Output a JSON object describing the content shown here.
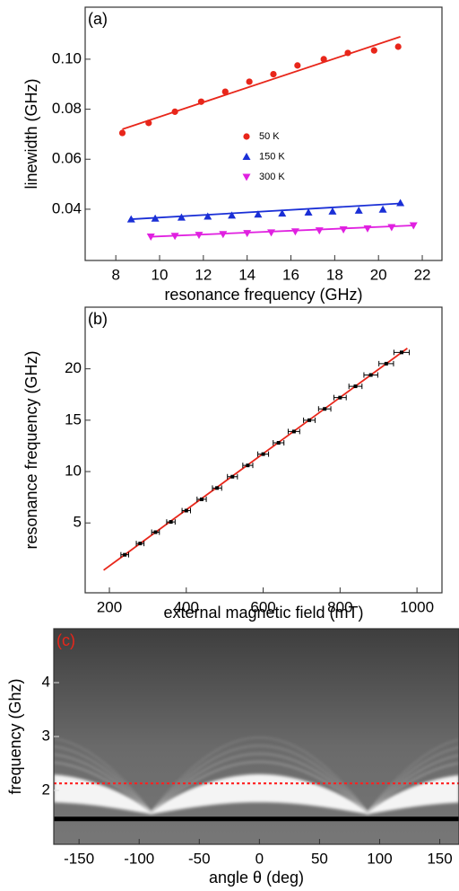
{
  "chart_data": [
    {
      "type": "scatter",
      "label": "(a)",
      "label_color": "#000000",
      "xlabel": "resonance frequency (GHz)",
      "ylabel": "linewidth (GHz)",
      "xlim": [
        6.6,
        22.9
      ],
      "ylim": [
        0.0195,
        0.1208
      ],
      "xticks": [
        8,
        10,
        12,
        14,
        16,
        18,
        20,
        22
      ],
      "yticks": [
        0.04,
        0.06,
        0.08,
        {
          "value": 0.1,
          "label": "0.10"
        }
      ],
      "legend": "center",
      "series": [
        {
          "name": "50 K",
          "color": "#e8261a",
          "marker": "circle",
          "x": [
            8.3,
            9.5,
            10.7,
            11.9,
            13.0,
            14.1,
            15.2,
            16.3,
            17.5,
            18.6,
            19.8,
            20.9
          ],
          "values": [
            0.0705,
            0.0745,
            0.079,
            0.083,
            0.087,
            0.091,
            0.094,
            0.0975,
            0.1,
            0.1025,
            0.1035,
            0.105
          ],
          "fit": {
            "color": "#e8261a",
            "x": [
              8.3,
              21.0
            ],
            "values": [
              0.072,
              0.109
            ]
          }
        },
        {
          "name": "150 K",
          "color": "#1a2fd6",
          "marker": "triangle-up",
          "x": [
            8.7,
            9.8,
            11.0,
            12.2,
            13.3,
            14.5,
            15.6,
            16.8,
            17.9,
            19.1,
            20.2,
            21.0
          ],
          "values": [
            0.036,
            0.0363,
            0.0367,
            0.0371,
            0.0375,
            0.0379,
            0.0383,
            0.0387,
            0.0391,
            0.0395,
            0.0399,
            0.0425
          ],
          "fit": {
            "color": "#1a2fd6",
            "x": [
              8.7,
              21.0
            ],
            "values": [
              0.036,
              0.0423
            ]
          }
        },
        {
          "name": "300 K",
          "color": "#e020e0",
          "marker": "triangle-down",
          "x": [
            9.6,
            10.7,
            11.8,
            12.9,
            14.0,
            15.1,
            16.2,
            17.3,
            18.4,
            19.5,
            20.6,
            21.6
          ],
          "values": [
            0.029,
            0.0293,
            0.0297,
            0.03,
            0.0304,
            0.0307,
            0.0311,
            0.0315,
            0.0319,
            0.0323,
            0.0328,
            0.0335
          ],
          "fit": {
            "color": "#e020e0",
            "x": [
              9.6,
              21.6
            ],
            "values": [
              0.029,
              0.0335
            ]
          }
        }
      ]
    },
    {
      "type": "scatter",
      "label": "(b)",
      "label_color": "#000000",
      "xlabel": "external magnetic field (mT)",
      "ylabel": "resonance frequency (GHz)",
      "xlim": [
        137,
        1065
      ],
      "ylim": [
        -1.8,
        26
      ],
      "xticks": [
        200,
        400,
        600,
        800,
        1000
      ],
      "yticks": [
        5,
        10,
        15,
        20
      ],
      "series": [
        {
          "color": "#000000",
          "marker": "square",
          "x": [
            240,
            280,
            320,
            360,
            400,
            440,
            480,
            520,
            560,
            600,
            640,
            680,
            720,
            760,
            800,
            840,
            880,
            920,
            960
          ],
          "values": [
            1.9,
            3.0,
            4.1,
            5.1,
            6.2,
            7.3,
            8.4,
            9.5,
            10.6,
            11.7,
            12.8,
            13.9,
            15.0,
            16.1,
            17.2,
            18.3,
            19.4,
            20.5,
            21.6
          ],
          "x_err": [
            10,
            10,
            10,
            11,
            11,
            12,
            12,
            13,
            13,
            14,
            14,
            15,
            15,
            16,
            16,
            17,
            18,
            19,
            20
          ],
          "fit": {
            "color": "#e8261a",
            "x": [
              185,
              975
            ],
            "values": [
              0.4,
              22.0
            ]
          }
        }
      ]
    },
    {
      "type": "image",
      "label": "(c)",
      "label_color": "#e8261a",
      "xlabel": "angle θ (deg)",
      "ylabel": "frequency (Ghz)",
      "xlim": [
        -171,
        166
      ],
      "ylim": [
        1,
        5
      ],
      "xticks": [
        -150,
        -100,
        -50,
        0,
        50,
        100,
        150
      ],
      "yticks": [
        2,
        3,
        4
      ],
      "hlines": [
        {
          "value": 2.13,
          "color": "#ff2020",
          "style": "dotted"
        },
        {
          "value": 1.47,
          "color": "#000000",
          "style": "solid"
        }
      ]
    }
  ]
}
